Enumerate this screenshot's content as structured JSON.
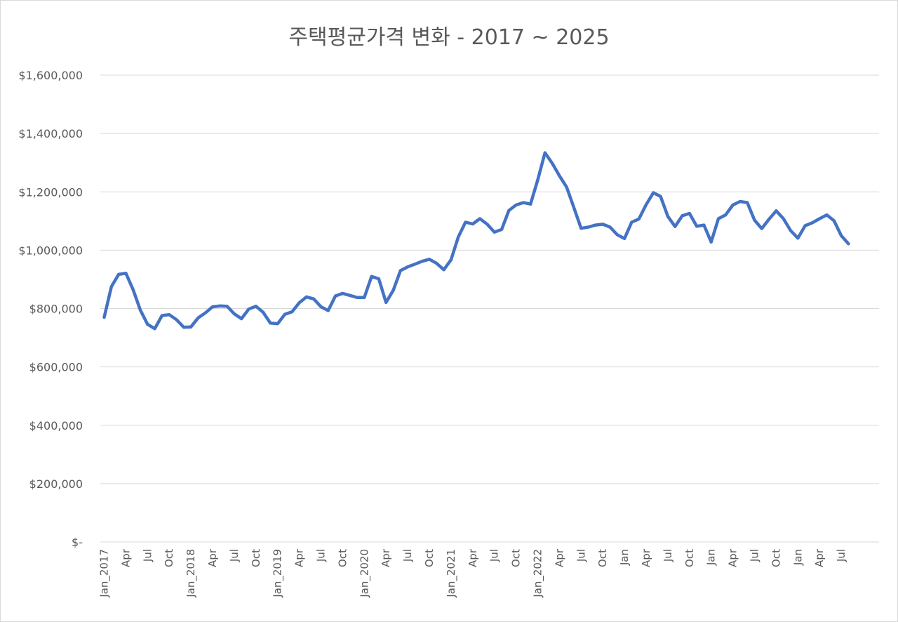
{
  "chart_data": {
    "type": "line",
    "title": "주택평균가격 변화 - 2017 ~ 2025",
    "xlabel": "",
    "ylabel": "",
    "ylim": [
      0,
      1600000
    ],
    "grid": true,
    "legend": "none",
    "y_ticks": [
      {
        "value": 0,
        "label": "$-"
      },
      {
        "value": 200000,
        "label": "$200,000"
      },
      {
        "value": 400000,
        "label": "$400,000"
      },
      {
        "value": 600000,
        "label": "$600,000"
      },
      {
        "value": 800000,
        "label": "$800,000"
      },
      {
        "value": 1000000,
        "label": "$1,000,000"
      },
      {
        "value": 1200000,
        "label": "$1,200,000"
      },
      {
        "value": 1400000,
        "label": "$1,400,000"
      },
      {
        "value": 1600000,
        "label": "$1,600,000"
      }
    ],
    "x_ticks": [
      {
        "index": 0,
        "label": "Jan_2017"
      },
      {
        "index": 3,
        "label": "Apr"
      },
      {
        "index": 6,
        "label": "Jul"
      },
      {
        "index": 9,
        "label": "Oct"
      },
      {
        "index": 12,
        "label": "Jan_2018"
      },
      {
        "index": 15,
        "label": "Apr"
      },
      {
        "index": 18,
        "label": "Jul"
      },
      {
        "index": 21,
        "label": "Oct"
      },
      {
        "index": 24,
        "label": "Jan_2019"
      },
      {
        "index": 27,
        "label": "Apr"
      },
      {
        "index": 30,
        "label": "Jul"
      },
      {
        "index": 33,
        "label": "Oct"
      },
      {
        "index": 36,
        "label": "Jan_2020"
      },
      {
        "index": 39,
        "label": "Apr"
      },
      {
        "index": 42,
        "label": "Jul"
      },
      {
        "index": 45,
        "label": "Oct"
      },
      {
        "index": 48,
        "label": "Jan_2021"
      },
      {
        "index": 51,
        "label": "Apr"
      },
      {
        "index": 54,
        "label": "Jul"
      },
      {
        "index": 57,
        "label": "Oct"
      },
      {
        "index": 60,
        "label": "Jan_2022"
      },
      {
        "index": 63,
        "label": "Apr"
      },
      {
        "index": 66,
        "label": "Jul"
      },
      {
        "index": 69,
        "label": "Oct"
      },
      {
        "index": 72,
        "label": "Jan"
      },
      {
        "index": 75,
        "label": "Apr"
      },
      {
        "index": 78,
        "label": "Jul"
      },
      {
        "index": 81,
        "label": "Oct"
      },
      {
        "index": 84,
        "label": "Jan"
      },
      {
        "index": 87,
        "label": "Apr"
      },
      {
        "index": 90,
        "label": "Jul"
      },
      {
        "index": 93,
        "label": "Oct"
      },
      {
        "index": 96,
        "label": "Jan"
      },
      {
        "index": 99,
        "label": "Apr"
      },
      {
        "index": 102,
        "label": "Jul"
      }
    ],
    "series": [
      {
        "color": "#4472c4",
        "values": [
          770000,
          875000,
          917000,
          921000,
          865000,
          795000,
          746000,
          731000,
          776000,
          779000,
          762000,
          736000,
          737000,
          768000,
          785000,
          806000,
          809000,
          808000,
          782000,
          765000,
          798000,
          808000,
          787000,
          750000,
          748000,
          780000,
          789000,
          820000,
          840000,
          833000,
          806000,
          793000,
          843000,
          852000,
          845000,
          838000,
          838000,
          910000,
          902000,
          821000,
          862000,
          930000,
          943000,
          952000,
          962000,
          969000,
          955000,
          933000,
          967000,
          1045000,
          1096000,
          1090000,
          1108000,
          1089000,
          1062000,
          1071000,
          1136000,
          1155000,
          1163000,
          1158000,
          1241000,
          1334000,
          1298000,
          1255000,
          1216000,
          1146000,
          1075000,
          1079000,
          1086000,
          1089000,
          1079000,
          1053000,
          1040000,
          1096000,
          1107000,
          1156000,
          1197000,
          1184000,
          1116000,
          1081000,
          1118000,
          1126000,
          1082000,
          1086000,
          1028000,
          1108000,
          1121000,
          1155000,
          1167000,
          1163000,
          1103000,
          1074000,
          1106000,
          1135000,
          1108000,
          1067000,
          1041000,
          1084000,
          1094000,
          1108000,
          1121000,
          1101000,
          1050000,
          1022000
        ]
      }
    ]
  }
}
